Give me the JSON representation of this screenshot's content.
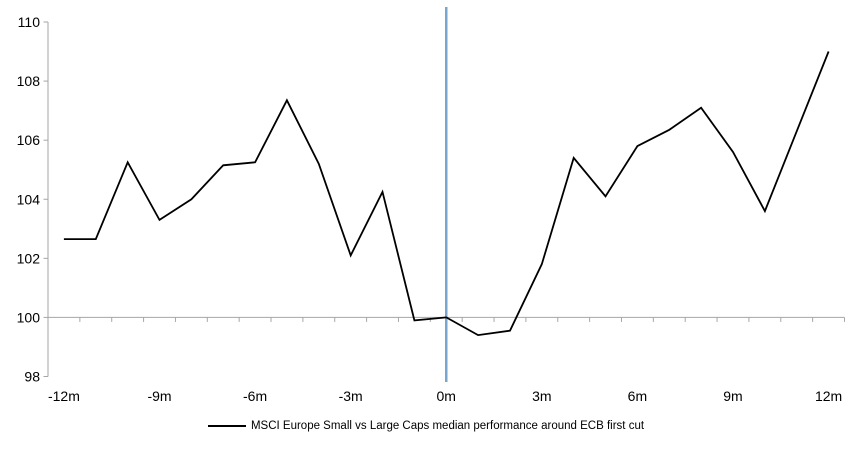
{
  "chart_data": {
    "type": "line",
    "title": "",
    "legend": "MSCI Europe Small vs Large Caps median performance around ECB first cut",
    "legend_position": "bottom-center",
    "x_unit": "months around ECB first cut",
    "categories": [
      -12,
      -11,
      -10,
      -9,
      -8,
      -7,
      -6,
      -5,
      -4,
      -3,
      -2,
      -1,
      0,
      1,
      2,
      3,
      4,
      5,
      6,
      7,
      8,
      9,
      10,
      11,
      12
    ],
    "x_tick_months": [
      -12,
      -9,
      -6,
      -3,
      0,
      3,
      6,
      9,
      12
    ],
    "x_tick_labels": [
      "-12m",
      "-9m",
      "-6m",
      "-3m",
      "0m",
      "3m",
      "6m",
      "9m",
      "12m"
    ],
    "series": [
      {
        "name": "MSCI Europe Small vs Large Caps median performance around ECB first cut",
        "color": "#000000",
        "values": [
          102.65,
          102.65,
          105.25,
          103.3,
          104.0,
          105.15,
          105.25,
          107.35,
          105.2,
          102.1,
          104.25,
          99.9,
          100.0,
          99.4,
          99.55,
          101.8,
          105.4,
          104.1,
          105.8,
          106.35,
          107.1,
          105.6,
          103.6,
          106.3,
          109.0
        ]
      }
    ],
    "ylim": [
      98,
      110
    ],
    "y_ticks": [
      98,
      100,
      102,
      104,
      106,
      108,
      110
    ],
    "y_tick_labels": [
      "98",
      "100",
      "102",
      "104",
      "106",
      "108",
      "110"
    ],
    "x_axis_cross_value": 100,
    "event_line": {
      "at_month": 0,
      "color": "#79A6CF"
    },
    "grid": "off",
    "colors": {
      "axis": "#A6A6A6",
      "series_line": "#000000",
      "event_line": "#79A6CF",
      "text": "#000000",
      "background": "#ffffff"
    }
  }
}
